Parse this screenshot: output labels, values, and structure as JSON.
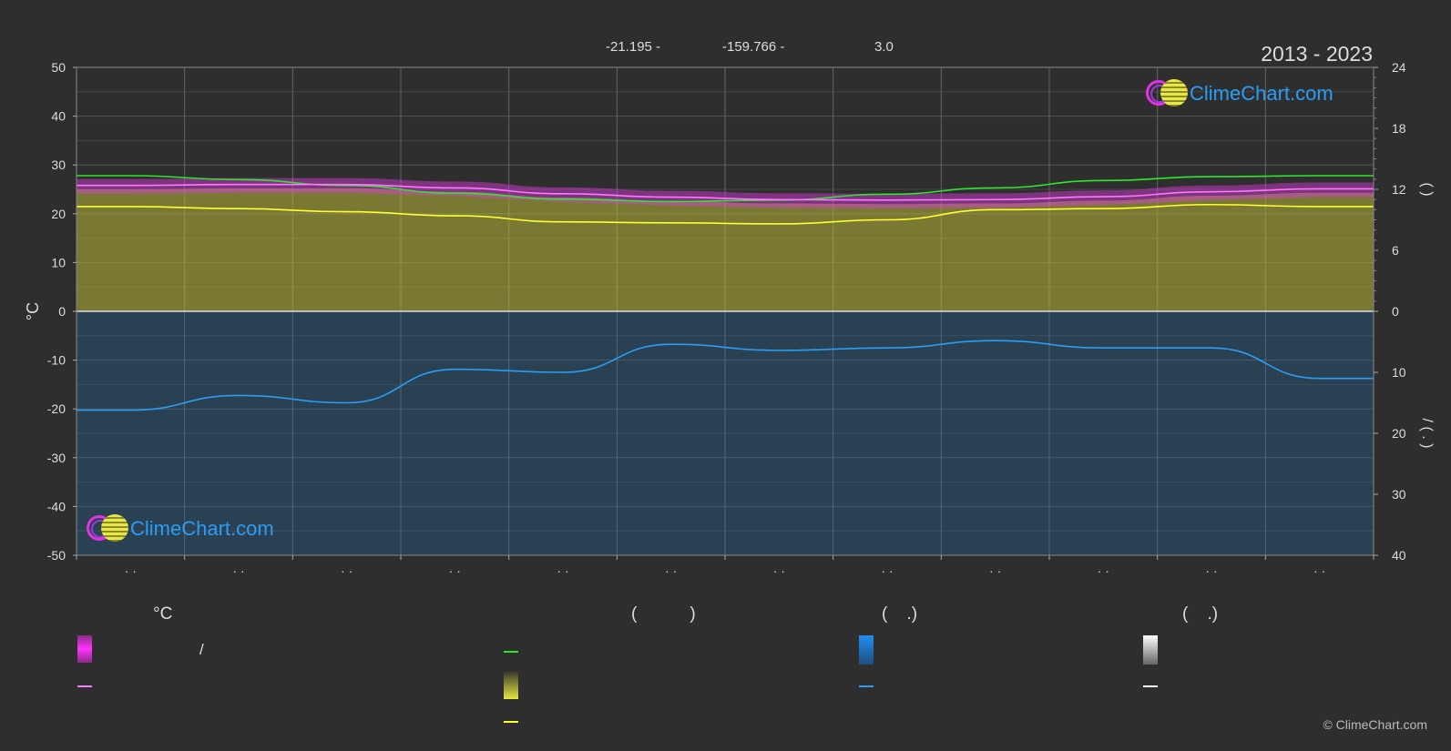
{
  "header": {
    "latitude": "-21.195 -",
    "longitude": "-159.766 -",
    "elevation": "3.0",
    "period": "2013 - 2023"
  },
  "logo_text": "ClimeChart.com",
  "copyright": "© ClimeChart.com",
  "colors": {
    "background": "#2e2e2e",
    "day_max_range": "#e03ae0",
    "day_mean": "#ff77ff",
    "sea_temp": "#2ee62e",
    "sunshine_fill": "#b8b83a",
    "sunshine_line": "#ffff33",
    "rain_fill": "#1f6fb5",
    "rain_line": "#2a9df4",
    "snow": "#ffffff",
    "brand": "#2a9df4"
  },
  "chart_data": {
    "type": "line",
    "left_axis": {
      "label": "°C",
      "ticks": [
        50,
        40,
        30,
        20,
        10,
        0,
        -10,
        -20,
        -30,
        -40,
        -50
      ],
      "range": [
        -50,
        50
      ]
    },
    "right_axis_top": {
      "ticks": [
        24,
        18,
        12,
        6,
        0
      ],
      "range": [
        0,
        24
      ],
      "label_glyphs": "(     )"
    },
    "right_axis_bottom": {
      "ticks": [
        0,
        10,
        20,
        30,
        40
      ],
      "range": [
        0,
        40
      ],
      "label_glyphs": "/    ( . )"
    },
    "x": {
      "count": 12,
      "tick_labels": [
        "· ·",
        "· ·",
        "· ·",
        "· ·",
        "· ·",
        "· ·",
        "· ·",
        "· ·",
        "· ·",
        "· ·",
        "· ·",
        "· ·"
      ]
    },
    "grid": true,
    "series": [
      {
        "key": "sea_temp",
        "color": "#2ee62e",
        "values": [
          27.8,
          27.0,
          25.8,
          24.2,
          23.0,
          22.5,
          22.8,
          24.0,
          25.3,
          26.8,
          27.6,
          27.8
        ]
      },
      {
        "key": "day_mean",
        "color": "#ff77ff",
        "values": [
          25.8,
          26.0,
          26.0,
          25.3,
          24.1,
          23.4,
          22.9,
          22.8,
          22.9,
          23.5,
          24.5,
          25.1
        ]
      },
      {
        "key": "sunshine",
        "color": "#ffff33",
        "axis": "right_top",
        "values_hours": [
          10.3,
          10.1,
          9.8,
          9.4,
          8.8,
          8.7,
          8.6,
          9.0,
          10.0,
          10.1,
          10.5,
          10.3
        ]
      },
      {
        "key": "precipitation",
        "color": "#2a9df4",
        "axis": "right_bottom",
        "values_mm": [
          16.2,
          13.8,
          15.0,
          9.5,
          10.0,
          5.4,
          6.4,
          6.0,
          4.8,
          6.0,
          6.0,
          11.0
        ]
      }
    ]
  },
  "legend": {
    "col1_head": "°C",
    "col2_head": "(           )",
    "col3_head": "(    .)",
    "col4_head": "(    .)",
    "col1_row1_text": "/"
  }
}
